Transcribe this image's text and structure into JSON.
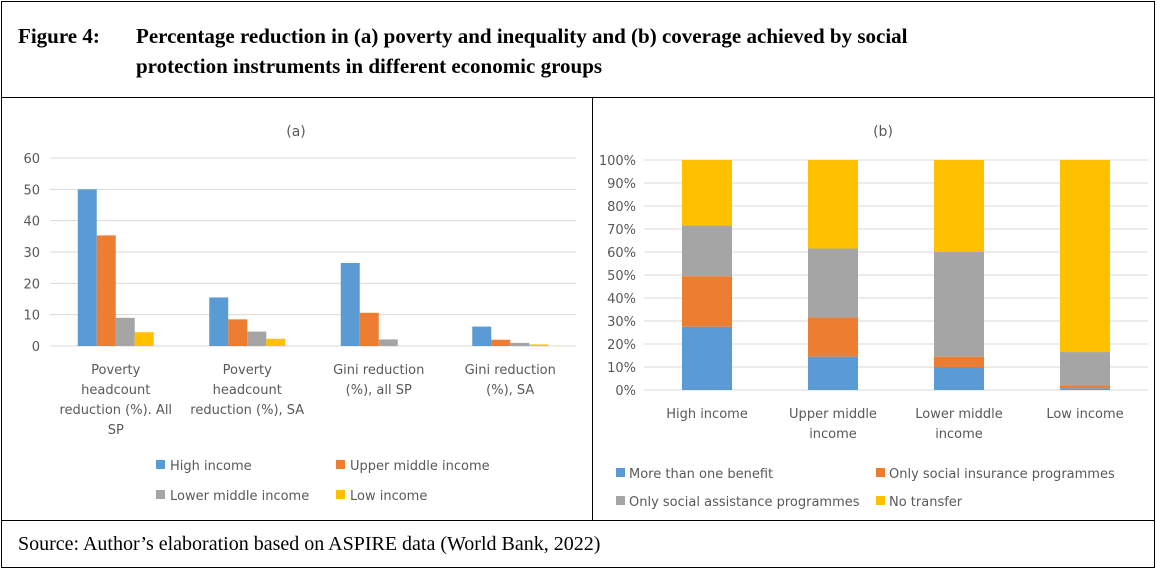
{
  "figure": {
    "label": "Figure 4:",
    "title_line1": "Percentage reduction in (a) poverty and inequality and (b) coverage achieved by social",
    "title_line2": "protection instruments in different economic groups",
    "source": "Source: Author’s elaboration based on ASPIRE data (World Bank, 2022)"
  },
  "colors": {
    "blue": "#5b9bd5",
    "orange": "#ed7d31",
    "gray": "#a5a5a5",
    "yellow": "#ffc000",
    "grid": "#d9d9d9",
    "text": "#595959"
  },
  "chart_data": [
    {
      "type": "bar",
      "title": "(a)",
      "categories": [
        [
          "Poverty",
          "headcount",
          "reduction (%). All",
          "SP"
        ],
        [
          "Poverty",
          "headcount",
          "reduction (%), SA"
        ],
        [
          "Gini reduction",
          "(%), all SP"
        ],
        [
          "Gini reduction",
          "(%), SA"
        ]
      ],
      "series": [
        {
          "name": "High income",
          "color": "#5b9bd5",
          "values": [
            50,
            15.5,
            26.5,
            6.2
          ]
        },
        {
          "name": "Upper middle income",
          "color": "#ed7d31",
          "values": [
            35.3,
            8.5,
            10.6,
            2
          ]
        },
        {
          "name": "Lower middle income",
          "color": "#a5a5a5",
          "values": [
            9,
            4.6,
            2.1,
            1
          ]
        },
        {
          "name": "Low income",
          "color": "#ffc000",
          "values": [
            4.4,
            2.3,
            0,
            0.5
          ]
        }
      ],
      "ylim": [
        0,
        60
      ],
      "yticks": [
        "0",
        "10",
        "20",
        "30",
        "40",
        "50",
        "60"
      ],
      "grid": true,
      "legend": "bottom"
    },
    {
      "type": "bar",
      "stacked": true,
      "title": "(b)",
      "categories": [
        [
          "High income"
        ],
        [
          "Upper middle",
          "income"
        ],
        [
          "Lower middle",
          "income"
        ],
        [
          "Low income"
        ]
      ],
      "series": [
        {
          "name": "More than one  benefit",
          "color": "#5b9bd5",
          "values": [
            27.5,
            14.5,
            10,
            0.8
          ]
        },
        {
          "name": "Only social insurance programmes",
          "color": "#ed7d31",
          "values": [
            22,
            17,
            4.5,
            1.2
          ]
        },
        {
          "name": "Only social assistance programmes",
          "color": "#a5a5a5",
          "values": [
            22,
            30,
            45.5,
            14.5
          ]
        },
        {
          "name": "No transfer",
          "color": "#ffc000",
          "values": [
            28.5,
            38.5,
            40,
            83.5
          ]
        }
      ],
      "ylim": [
        0,
        100
      ],
      "yticks": [
        "0%",
        "10%",
        "20%",
        "30%",
        "40%",
        "50%",
        "60%",
        "70%",
        "80%",
        "90%",
        "100%"
      ],
      "grid": true,
      "legend": "bottom"
    }
  ]
}
